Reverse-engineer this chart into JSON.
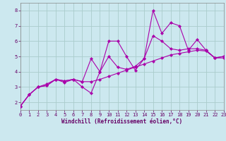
{
  "background_color": "#cce8ef",
  "grid_color": "#aacccc",
  "line_color": "#aa00aa",
  "xlabel": "Windchill (Refroidissement éolien,°C)",
  "xlim": [
    0,
    23
  ],
  "ylim": [
    1.5,
    8.5
  ],
  "yticks": [
    2,
    3,
    4,
    5,
    6,
    7,
    8
  ],
  "xticks": [
    0,
    1,
    2,
    3,
    4,
    5,
    6,
    7,
    8,
    9,
    10,
    11,
    12,
    13,
    14,
    15,
    16,
    17,
    18,
    19,
    20,
    21,
    22,
    23
  ],
  "series1": [
    [
      0,
      1.75
    ],
    [
      1,
      2.5
    ],
    [
      2,
      3.0
    ],
    [
      3,
      3.1
    ],
    [
      4,
      3.5
    ],
    [
      5,
      3.3
    ],
    [
      6,
      3.5
    ],
    [
      7,
      3.0
    ],
    [
      8,
      2.6
    ],
    [
      9,
      4.0
    ],
    [
      10,
      6.0
    ],
    [
      11,
      6.0
    ],
    [
      12,
      5.0
    ],
    [
      13,
      4.1
    ],
    [
      14,
      4.85
    ],
    [
      15,
      8.0
    ],
    [
      16,
      6.5
    ],
    [
      17,
      7.2
    ],
    [
      18,
      7.0
    ],
    [
      19,
      5.4
    ],
    [
      20,
      6.1
    ],
    [
      21,
      5.4
    ],
    [
      22,
      4.9
    ],
    [
      23,
      5.0
    ]
  ],
  "series2": [
    [
      0,
      1.75
    ],
    [
      1,
      2.5
    ],
    [
      2,
      3.0
    ],
    [
      3,
      3.1
    ],
    [
      4,
      3.5
    ],
    [
      5,
      3.4
    ],
    [
      6,
      3.5
    ],
    [
      7,
      3.35
    ],
    [
      8,
      4.85
    ],
    [
      9,
      4.0
    ],
    [
      10,
      5.0
    ],
    [
      11,
      4.3
    ],
    [
      12,
      4.15
    ],
    [
      13,
      4.35
    ],
    [
      14,
      4.85
    ],
    [
      15,
      6.35
    ],
    [
      16,
      6.0
    ],
    [
      17,
      5.5
    ],
    [
      18,
      5.4
    ],
    [
      19,
      5.5
    ],
    [
      20,
      5.5
    ],
    [
      21,
      5.4
    ],
    [
      22,
      4.9
    ],
    [
      23,
      5.0
    ]
  ],
  "series3": [
    [
      0,
      1.75
    ],
    [
      1,
      2.5
    ],
    [
      2,
      3.0
    ],
    [
      3,
      3.2
    ],
    [
      4,
      3.5
    ],
    [
      5,
      3.4
    ],
    [
      6,
      3.5
    ],
    [
      7,
      3.35
    ],
    [
      8,
      3.35
    ],
    [
      9,
      3.5
    ],
    [
      10,
      3.7
    ],
    [
      11,
      3.9
    ],
    [
      12,
      4.1
    ],
    [
      13,
      4.3
    ],
    [
      14,
      4.5
    ],
    [
      15,
      4.7
    ],
    [
      16,
      4.9
    ],
    [
      17,
      5.1
    ],
    [
      18,
      5.2
    ],
    [
      19,
      5.3
    ],
    [
      20,
      5.4
    ],
    [
      21,
      5.35
    ],
    [
      22,
      4.9
    ],
    [
      23,
      4.9
    ]
  ]
}
